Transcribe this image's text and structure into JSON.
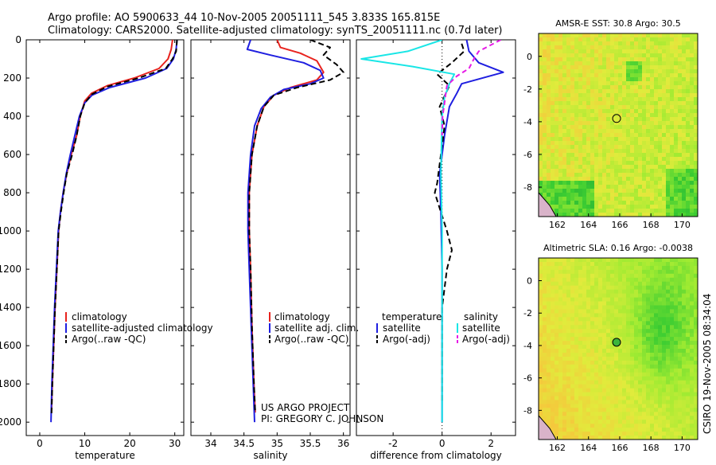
{
  "header": {
    "line1": "Argo profile: AO 5900633_44 10-Nov-2005 20051111_545 3.833S 165.815E",
    "line2": "Climatology: CARS2000. Satellite-adjusted climatology: synTS_20051111.nc (0.7d later)"
  },
  "colors": {
    "red": "#e8231e",
    "blue": "#1f1fe0",
    "black": "#000000",
    "cyan": "#19e6e6",
    "magenta": "#e619e6"
  },
  "chart_data": [
    {
      "type": "line",
      "id": "temperature",
      "xlabel": "temperature",
      "ylabel": "",
      "xlim": [
        -3,
        32
      ],
      "ylim": [
        2070,
        0
      ],
      "xticks": [
        0,
        10,
        20,
        30
      ],
      "yticks": [
        0,
        200,
        400,
        600,
        800,
        1000,
        1200,
        1400,
        1600,
        1800,
        2000
      ],
      "series": [
        {
          "name": "climatology",
          "color": "red",
          "dash": "",
          "points": [
            [
              29.5,
              0
            ],
            [
              29.2,
              50
            ],
            [
              28.5,
              100
            ],
            [
              26.5,
              150
            ],
            [
              21,
              200
            ],
            [
              15,
              240
            ],
            [
              11.5,
              280
            ],
            [
              10,
              320
            ],
            [
              9,
              400
            ],
            [
              8.2,
              500
            ],
            [
              7,
              600
            ],
            [
              6,
              700
            ],
            [
              5.2,
              800
            ],
            [
              4.6,
              900
            ],
            [
              4.2,
              1000
            ],
            [
              3.8,
              1200
            ],
            [
              3.4,
              1400
            ],
            [
              3.1,
              1600
            ],
            [
              2.8,
              1800
            ],
            [
              2.6,
              1950
            ]
          ]
        },
        {
          "name": "satellite-adjusted climatology",
          "color": "blue",
          "dash": "",
          "points": [
            [
              30.5,
              0
            ],
            [
              30.3,
              50
            ],
            [
              29.7,
              100
            ],
            [
              28.2,
              150
            ],
            [
              23.5,
              200
            ],
            [
              15.5,
              250
            ],
            [
              11.6,
              290
            ],
            [
              10,
              330
            ],
            [
              8.8,
              400
            ],
            [
              7.8,
              500
            ],
            [
              6.8,
              600
            ],
            [
              5.9,
              700
            ],
            [
              5.2,
              800
            ],
            [
              4.6,
              900
            ],
            [
              4.1,
              1000
            ],
            [
              3.7,
              1200
            ],
            [
              3.3,
              1400
            ],
            [
              3,
              1600
            ],
            [
              2.7,
              1800
            ],
            [
              2.5,
              2000
            ]
          ]
        },
        {
          "name": "Argo(..raw -QC)",
          "color": "black",
          "dash": "7 4",
          "points": [
            [
              30.5,
              0
            ],
            [
              30.3,
              60
            ],
            [
              29.5,
              100
            ],
            [
              28,
              150
            ],
            [
              22,
              200
            ],
            [
              15,
              245
            ],
            [
              11.6,
              285
            ],
            [
              10,
              330
            ],
            [
              9,
              400
            ],
            [
              8.2,
              500
            ],
            [
              7.2,
              600
            ],
            [
              6,
              700
            ],
            [
              5.3,
              800
            ],
            [
              4.7,
              900
            ],
            [
              4.2,
              1000
            ],
            [
              3.8,
              1200
            ],
            [
              3.4,
              1400
            ],
            [
              3.1,
              1600
            ],
            [
              2.8,
              1800
            ],
            [
              2.6,
              1960
            ]
          ]
        }
      ]
    },
    {
      "type": "line",
      "id": "salinity",
      "xlabel": "salinity",
      "ylabel": "",
      "xlim": [
        33.7,
        36.1
      ],
      "ylim": [
        2070,
        0
      ],
      "xticks": [
        34,
        34.5,
        35,
        35.5,
        36
      ],
      "yticks": [
        0,
        200,
        400,
        600,
        800,
        1000,
        1200,
        1400,
        1600,
        1800,
        2000
      ],
      "series": [
        {
          "name": "climatology",
          "color": "red",
          "dash": "",
          "points": [
            [
              35,
              0
            ],
            [
              35.05,
              40
            ],
            [
              35.35,
              70
            ],
            [
              35.6,
              110
            ],
            [
              35.7,
              170
            ],
            [
              35.6,
              210
            ],
            [
              35.2,
              250
            ],
            [
              34.95,
              290
            ],
            [
              34.8,
              350
            ],
            [
              34.7,
              450
            ],
            [
              34.62,
              600
            ],
            [
              34.58,
              800
            ],
            [
              34.58,
              1000
            ],
            [
              34.6,
              1200
            ],
            [
              34.62,
              1500
            ],
            [
              34.65,
              1800
            ],
            [
              34.67,
              1950
            ]
          ]
        },
        {
          "name": "satellite adj. clim.",
          "color": "blue",
          "dash": "",
          "points": [
            [
              34.6,
              0
            ],
            [
              34.55,
              50
            ],
            [
              34.9,
              80
            ],
            [
              35.4,
              120
            ],
            [
              35.65,
              160
            ],
            [
              35.7,
              200
            ],
            [
              35.5,
              230
            ],
            [
              35.1,
              260
            ],
            [
              34.9,
              300
            ],
            [
              34.76,
              360
            ],
            [
              34.66,
              450
            ],
            [
              34.6,
              600
            ],
            [
              34.56,
              800
            ],
            [
              34.56,
              1000
            ],
            [
              34.58,
              1200
            ],
            [
              34.61,
              1500
            ],
            [
              34.64,
              1800
            ],
            [
              34.66,
              2000
            ]
          ]
        },
        {
          "name": "Argo(..raw -QC)",
          "color": "black",
          "dash": "7 4",
          "points": [
            [
              35.5,
              0
            ],
            [
              35.8,
              40
            ],
            [
              35.7,
              80
            ],
            [
              35.9,
              130
            ],
            [
              36,
              170
            ],
            [
              35.8,
              210
            ],
            [
              35.3,
              250
            ],
            [
              34.95,
              290
            ],
            [
              34.8,
              350
            ],
            [
              34.7,
              450
            ],
            [
              34.62,
              600
            ],
            [
              34.58,
              800
            ],
            [
              34.58,
              1000
            ],
            [
              34.6,
              1200
            ],
            [
              34.62,
              1500
            ],
            [
              34.65,
              1800
            ],
            [
              34.67,
              1950
            ]
          ]
        }
      ],
      "annotation": [
        "US ARGO PROJECT",
        "PI: GREGORY C. JOHNSON"
      ]
    },
    {
      "type": "line",
      "id": "difference",
      "xlabel": "difference from climatology",
      "ylabel": "",
      "xlim": [
        -3.5,
        3
      ],
      "ylim": [
        2070,
        0
      ],
      "xticks": [
        -2,
        0,
        2
      ],
      "yticks": [
        0,
        200,
        400,
        600,
        800,
        1000,
        1200,
        1400,
        1600,
        1800,
        2000
      ],
      "series": [
        {
          "name": "temperature satellite",
          "color": "blue",
          "dash": "",
          "points": [
            [
              1,
              0
            ],
            [
              1.1,
              60
            ],
            [
              1.5,
              120
            ],
            [
              2.5,
              170
            ],
            [
              0.8,
              230
            ],
            [
              0.6,
              280
            ],
            [
              0.3,
              350
            ],
            [
              0.1,
              500
            ],
            [
              -0.1,
              700
            ],
            [
              -0.05,
              900
            ],
            [
              0,
              1200
            ],
            [
              0,
              1600
            ],
            [
              0,
              2000
            ]
          ]
        },
        {
          "name": "temperature Argo(-adj)",
          "color": "black",
          "dash": "7 4",
          "points": [
            [
              0.8,
              20
            ],
            [
              0.9,
              60
            ],
            [
              0.4,
              120
            ],
            [
              -0.2,
              180
            ],
            [
              0.3,
              240
            ],
            [
              -0.1,
              350
            ],
            [
              0.1,
              450
            ],
            [
              -0.05,
              600
            ],
            [
              -0.2,
              750
            ],
            [
              -0.3,
              800
            ],
            [
              0.2,
              1000
            ],
            [
              0.4,
              1100
            ],
            [
              0.2,
              1200
            ],
            [
              0,
              1400
            ],
            [
              0,
              1900
            ]
          ]
        },
        {
          "name": "salinity satellite",
          "color": "cyan",
          "dash": "",
          "points": [
            [
              0,
              0
            ],
            [
              -1.4,
              60
            ],
            [
              -3.3,
              100
            ],
            [
              -1.2,
              140
            ],
            [
              0.5,
              180
            ],
            [
              0.3,
              230
            ],
            [
              0.1,
              300
            ],
            [
              0,
              400
            ],
            [
              -0.05,
              700
            ],
            [
              0,
              1000
            ],
            [
              0,
              1500
            ],
            [
              0,
              2000
            ]
          ]
        },
        {
          "name": "salinity Argo(-adj)",
          "color": "magenta",
          "dash": "6 4",
          "points": [
            [
              2.4,
              0
            ],
            [
              1.5,
              60
            ],
            [
              1.3,
              100
            ],
            [
              1.1,
              150
            ],
            [
              0.6,
              190
            ],
            [
              0.2,
              240
            ],
            [
              0.15,
              280
            ],
            [
              0.1,
              330
            ],
            [
              0.02,
              400
            ],
            [
              0,
              500
            ]
          ]
        }
      ],
      "legend": {
        "temperature": "temperature",
        "salinity": "salinity",
        "satellite": "satellite",
        "argo": "Argo(-adj)"
      }
    },
    {
      "type": "heatmap",
      "id": "sst",
      "title": "AMSR-E SST: 30.8 Argo: 30.5",
      "xlim": [
        160.8,
        171
      ],
      "ylim": [
        -9.8,
        1.4
      ],
      "xticks": [
        162,
        164,
        166,
        168,
        170
      ],
      "yticks": [
        -8,
        -6,
        -4,
        -2,
        0
      ],
      "marker": [
        165.8,
        -3.8
      ]
    },
    {
      "type": "heatmap",
      "id": "sla",
      "title": "Altimetric SLA: 0.16 Argo: -0.0038",
      "xlim": [
        160.8,
        171
      ],
      "ylim": [
        -9.8,
        1.4
      ],
      "xticks": [
        162,
        164,
        166,
        168,
        170
      ],
      "yticks": [
        -8,
        -6,
        -4,
        -2,
        0
      ],
      "marker": [
        165.8,
        -3.8
      ]
    }
  ],
  "legends": {
    "temperature": [
      "climatology",
      "satellite-adjusted climatology",
      "Argo(..raw -QC)"
    ],
    "salinity": [
      "climatology",
      "satellite adj. clim.",
      "Argo(..raw -QC)"
    ]
  },
  "footer_stamp": "CSIRO 19-Nov-2005 08:34:04"
}
